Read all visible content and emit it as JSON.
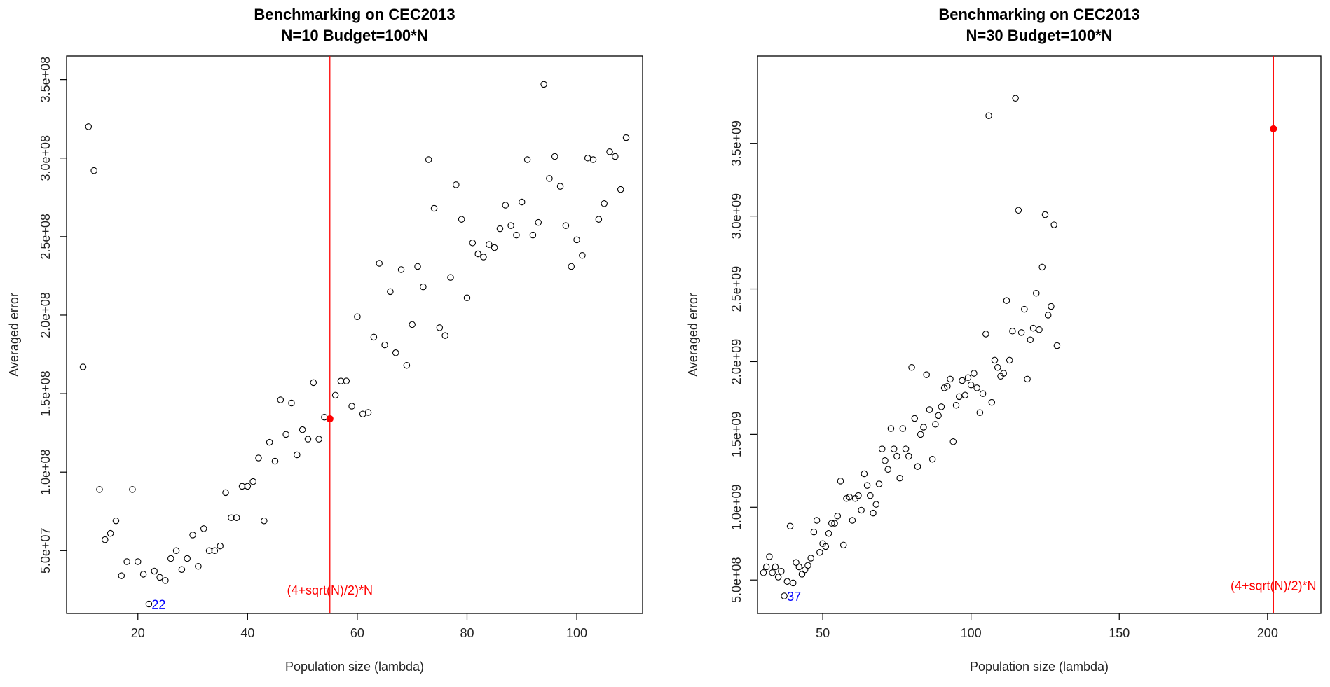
{
  "chart_data": [
    {
      "type": "scatter",
      "title": [
        "Benchmarking on CEC2013",
        "N=10 Budget=100*N"
      ],
      "xlabel": "Population size (lambda)",
      "ylabel": "Averaged error",
      "xlim": [
        7,
        112
      ],
      "ylim": [
        10000000.0,
        365000000.0
      ],
      "xticks": [
        20,
        40,
        60,
        80,
        100
      ],
      "xtick_labels": [
        "20",
        "40",
        "60",
        "80",
        "100"
      ],
      "yticks": [
        50000000.0,
        100000000.0,
        150000000.0,
        200000000.0,
        250000000.0,
        300000000.0,
        350000000.0
      ],
      "ytick_labels": [
        "5.0e+07",
        "1.0e+08",
        "1.5e+08",
        "2.0e+08",
        "2.5e+08",
        "3.0e+08",
        "3.5e+08"
      ],
      "vline": {
        "x": 55,
        "color": "#ff0000",
        "label": "(4+sqrt(N)/2)*N",
        "label_y": 22000000.0
      },
      "highlight_point": {
        "x": 55,
        "y": 134000000.0,
        "color": "#ff0000"
      },
      "best_point": {
        "x": 22,
        "y": 16000000.0,
        "label": "22",
        "color": "#0000ff"
      },
      "x": [
        10,
        11,
        12,
        13,
        14,
        15,
        16,
        17,
        18,
        19,
        20,
        21,
        23,
        24,
        25,
        26,
        27,
        28,
        29,
        30,
        31,
        32,
        33,
        34,
        35,
        36,
        37,
        38,
        39,
        40,
        41,
        42,
        43,
        44,
        45,
        46,
        47,
        48,
        49,
        50,
        51,
        52,
        53,
        54,
        56,
        57,
        58,
        59,
        60,
        61,
        62,
        63,
        64,
        65,
        66,
        67,
        68,
        69,
        70,
        71,
        72,
        73,
        74,
        75,
        76,
        77,
        78,
        79,
        80,
        81,
        82,
        83,
        84,
        85,
        86,
        87,
        88,
        89,
        90,
        91,
        92,
        93,
        94,
        95,
        96,
        97,
        98,
        99,
        100,
        101,
        102,
        103,
        104,
        105,
        106,
        107,
        108,
        109
      ],
      "y": [
        167000000.0,
        320000000.0,
        292000000.0,
        89000000.0,
        57000000.0,
        61000000.0,
        69000000.0,
        34000000.0,
        43000000.0,
        89000000.0,
        43000000.0,
        35000000.0,
        37000000.0,
        33000000.0,
        31000000.0,
        45000000.0,
        50000000.0,
        38000000.0,
        45000000.0,
        60000000.0,
        40000000.0,
        64000000.0,
        50000000.0,
        50000000.0,
        53000000.0,
        87000000.0,
        71000000.0,
        71000000.0,
        91000000.0,
        91000000.0,
        94000000.0,
        109000000.0,
        69000000.0,
        119000000.0,
        107000000.0,
        146000000.0,
        124000000.0,
        144000000.0,
        111000000.0,
        127000000.0,
        121000000.0,
        157000000.0,
        121000000.0,
        135000000.0,
        149000000.0,
        158000000.0,
        158000000.0,
        142000000.0,
        199000000.0,
        137000000.0,
        138000000.0,
        186000000.0,
        233000000.0,
        181000000.0,
        215000000.0,
        176000000.0,
        229000000.0,
        168000000.0,
        194000000.0,
        231000000.0,
        218000000.0,
        299000000.0,
        268000000.0,
        192000000.0,
        187000000.0,
        224000000.0,
        283000000.0,
        261000000.0,
        211000000.0,
        246000000.0,
        239000000.0,
        237000000.0,
        245000000.0,
        243000000.0,
        255000000.0,
        270000000.0,
        257000000.0,
        251000000.0,
        272000000.0,
        299000000.0,
        251000000.0,
        259000000.0,
        347000000.0,
        287000000.0,
        301000000.0,
        282000000.0,
        257000000.0,
        231000000.0,
        248000000.0,
        238000000.0,
        300000000.0,
        299000000.0,
        261000000.0,
        271000000.0,
        304000000.0,
        301000000.0,
        280000000.0,
        313000000.0
      ]
    },
    {
      "type": "scatter",
      "title": [
        "Benchmarking on CEC2013",
        "N=30 Budget=100*N"
      ],
      "xlabel": "Population size (lambda)",
      "ylabel": "Averaged error",
      "xlim": [
        28,
        218
      ],
      "ylim": [
        270000000.0,
        4100000000.0
      ],
      "xticks": [
        50,
        100,
        150,
        200
      ],
      "xtick_labels": [
        "50",
        "100",
        "150",
        "200"
      ],
      "yticks": [
        500000000.0,
        1000000000.0,
        1500000000.0,
        2000000000.0,
        2500000000.0,
        3000000000.0,
        3500000000.0
      ],
      "ytick_labels": [
        "5.0e+08",
        "1.0e+09",
        "1.5e+09",
        "2.0e+09",
        "2.5e+09",
        "3.0e+09",
        "3.5e+09"
      ],
      "vline": {
        "x": 202,
        "color": "#ff0000",
        "label": "(4+sqrt(N)/2)*N",
        "label_y": 430000000.0
      },
      "highlight_point": {
        "x": 202,
        "y": 3600000000.0,
        "color": "#ff0000"
      },
      "best_point": {
        "x": 37,
        "y": 390000000.0,
        "label": "37",
        "color": "#0000ff"
      },
      "x": [
        30,
        31,
        32,
        33,
        34,
        35,
        36,
        38,
        39,
        40,
        41,
        42,
        43,
        44,
        45,
        46,
        47,
        48,
        49,
        50,
        51,
        52,
        53,
        54,
        55,
        56,
        57,
        58,
        59,
        60,
        61,
        62,
        63,
        64,
        65,
        66,
        67,
        68,
        69,
        70,
        71,
        72,
        73,
        74,
        75,
        76,
        77,
        78,
        79,
        80,
        81,
        82,
        83,
        84,
        85,
        86,
        87,
        88,
        89,
        90,
        91,
        92,
        93,
        94,
        95,
        96,
        97,
        98,
        99,
        100,
        101,
        102,
        103,
        104,
        105,
        106,
        107,
        108,
        109,
        110,
        111,
        112,
        113,
        114,
        115,
        116,
        117,
        118,
        119,
        120,
        121,
        122,
        123,
        124,
        125,
        126,
        127,
        128,
        129
      ],
      "y": [
        550000000.0,
        590000000.0,
        660000000.0,
        550000000.0,
        590000000.0,
        520000000.0,
        560000000.0,
        490000000.0,
        870000000.0,
        480000000.0,
        620000000.0,
        590000000.0,
        540000000.0,
        570000000.0,
        600000000.0,
        650000000.0,
        830000000.0,
        910000000.0,
        690000000.0,
        750000000.0,
        730000000.0,
        820000000.0,
        890000000.0,
        890000000.0,
        940000000.0,
        1180000000.0,
        740000000.0,
        1060000000.0,
        1070000000.0,
        910000000.0,
        1060000000.0,
        1080000000.0,
        980000000.0,
        1230000000.0,
        1150000000.0,
        1080000000.0,
        960000000.0,
        1020000000.0,
        1160000000.0,
        1400000000.0,
        1320000000.0,
        1260000000.0,
        1540000000.0,
        1400000000.0,
        1350000000.0,
        1200000000.0,
        1540000000.0,
        1400000000.0,
        1350000000.0,
        1960000000.0,
        1610000000.0,
        1280000000.0,
        1500000000.0,
        1550000000.0,
        1910000000.0,
        1670000000.0,
        1330000000.0,
        1570000000.0,
        1630000000.0,
        1690000000.0,
        1820000000.0,
        1830000000.0,
        1880000000.0,
        1450000000.0,
        1700000000.0,
        1760000000.0,
        1870000000.0,
        1770000000.0,
        1890000000.0,
        1840000000.0,
        1920000000.0,
        1820000000.0,
        1650000000.0,
        1780000000.0,
        2190000000.0,
        3690000000.0,
        1720000000.0,
        2010000000.0,
        1960000000.0,
        1900000000.0,
        1920000000.0,
        2420000000.0,
        2010000000.0,
        2210000000.0,
        3810000000.0,
        3040000000.0,
        2200000000.0,
        2360000000.0,
        1880000000.0,
        2150000000.0,
        2230000000.0,
        2470000000.0,
        2220000000.0,
        2650000000.0,
        3010000000.0,
        2320000000.0,
        2380000000.0,
        2940000000.0,
        2110000000.0
      ]
    }
  ]
}
